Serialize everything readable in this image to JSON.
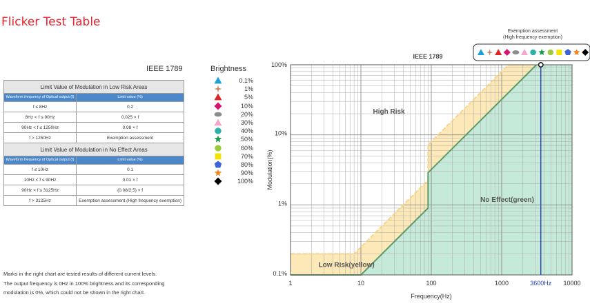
{
  "page": {
    "title": "Flicker Test Table",
    "ieee_label": "IEEE 1789",
    "brightness_title": "Brightness",
    "notes": [
      "Marks in the right chart are tested results of different current levels.",
      "The output frequency is 0Hz in 100% brightness and its corresponding",
      "modulation is 0%, which could not be shown in the right chart."
    ]
  },
  "table": {
    "low_risk_title": "Limit Value of Modulation in Low Risk Areas",
    "no_effect_title": "Limit Value of Modulation in No Effect Areas",
    "col_freq": "Waveform frequency of Optical output (f)",
    "col_limit": "Limit value (%)",
    "low_risk_rows": [
      {
        "freq": "f ≤ 8Hz",
        "limit": "0.2"
      },
      {
        "freq": "8Hz < f ≤ 90Hz",
        "limit": "0.025 × f"
      },
      {
        "freq": "90Hz < f ≤ 1250Hz",
        "limit": "0.08 × f"
      },
      {
        "freq": "f > 1250Hz",
        "limit": "Exemption assessment"
      }
    ],
    "no_effect_rows": [
      {
        "freq": "f ≤ 10Hz",
        "limit": "0.1"
      },
      {
        "freq": "10Hz < f ≤ 90Hz",
        "limit": "0.01 × f"
      },
      {
        "freq": "90Hz < f ≤ 3125Hz",
        "limit": "(0.08/2.5) × f"
      },
      {
        "freq": "f > 3125Hz",
        "limit": "Exemption assessment (High frequency exemption)"
      }
    ]
  },
  "legend": [
    {
      "label": "0.1%",
      "shape": "triangle",
      "color": "#1aa1d6"
    },
    {
      "label": "1%",
      "shape": "cross-star",
      "color": "#c9825a"
    },
    {
      "label": "5%",
      "shape": "triangle",
      "color": "#e02424"
    },
    {
      "label": "10%",
      "shape": "diamond",
      "color": "#d6136f"
    },
    {
      "label": "20%",
      "shape": "ellipse",
      "color": "#8c8c8c"
    },
    {
      "label": "30%",
      "shape": "triangle",
      "color": "#f4a6c8"
    },
    {
      "label": "40%",
      "shape": "circle",
      "color": "#2cb1a8"
    },
    {
      "label": "50%",
      "shape": "star",
      "color": "#179c47"
    },
    {
      "label": "60%",
      "shape": "circle",
      "color": "#9bcb3b"
    },
    {
      "label": "70%",
      "shape": "square",
      "color": "#f2e200"
    },
    {
      "label": "80%",
      "shape": "pentagon",
      "color": "#3c64d8"
    },
    {
      "label": "90%",
      "shape": "star",
      "color": "#f5821f"
    },
    {
      "label": "100%",
      "shape": "diamond",
      "color": "#000000"
    }
  ],
  "chart_data": {
    "type": "area",
    "title": "IEEE 1789",
    "xlabel": "Frequency(Hz)",
    "ylabel": "Modulation(%)",
    "x_scale": "log",
    "y_scale": "log",
    "xlim": [
      1,
      10000
    ],
    "ylim": [
      0.1,
      100
    ],
    "x_ticks": [
      {
        "value": 1,
        "label": "1"
      },
      {
        "value": 10,
        "label": "10"
      },
      {
        "value": 100,
        "label": "100"
      },
      {
        "value": 1000,
        "label": "1000"
      },
      {
        "value": 3600,
        "label": "3600Hz"
      },
      {
        "value": 10000,
        "label": "10000"
      }
    ],
    "y_ticks": [
      {
        "value": 0.1,
        "label": "0.1%"
      },
      {
        "value": 1,
        "label": "1%"
      },
      {
        "value": 10,
        "label": "10%"
      },
      {
        "value": 100,
        "label": "100%"
      }
    ],
    "grid": true,
    "regions": [
      {
        "name": "High Risk",
        "color": "#ffffff",
        "label_at": [
          25,
          20
        ]
      },
      {
        "name": "Low Risk(yellow)",
        "color": "#fde9b8",
        "label_at": [
          2.5,
          0.13
        ]
      },
      {
        "name": "No Effect(green)",
        "color": "#c6ead9",
        "label_at": [
          1200,
          1.1
        ]
      }
    ],
    "series": [
      {
        "name": "Low Risk",
        "style": "dashed",
        "color": "#f7d488",
        "points": [
          [
            1,
            0.2
          ],
          [
            8,
            0.2
          ],
          [
            90,
            2.25
          ],
          [
            90,
            7.2
          ],
          [
            1250,
            100
          ]
        ]
      },
      {
        "name": "No Effect",
        "style": "solid",
        "color": "#5a9a6a",
        "points": [
          [
            1,
            0.1
          ],
          [
            10,
            0.1
          ],
          [
            90,
            0.9
          ],
          [
            90,
            2.88
          ],
          [
            3125,
            100
          ]
        ]
      }
    ],
    "marker_line": {
      "x": 3600,
      "label": "3600Hz",
      "color": "#2a3bb8"
    },
    "marker_point": {
      "x": 3600,
      "y": 100
    },
    "exemption": {
      "title_line1": "Exemption assessment",
      "title_line2": "(High frequency exemption)"
    }
  }
}
